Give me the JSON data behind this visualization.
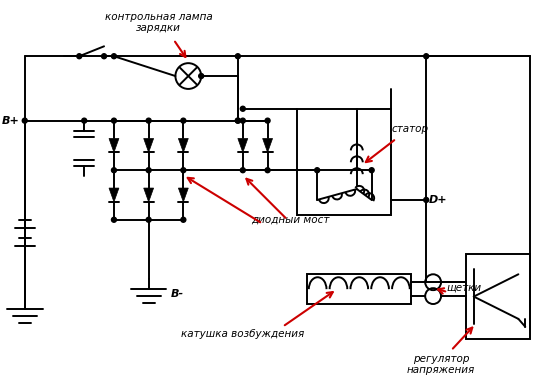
{
  "bg_color": "#ffffff",
  "line_color": "#000000",
  "arrow_color": "#cc0000",
  "text_color": "#000000",
  "fig_width": 5.6,
  "fig_height": 3.87,
  "dpi": 100,
  "labels": {
    "kontrol_lamp": "контрольная лампа\nзарядки",
    "diodny_most": "диодный мост",
    "stator": "статор",
    "shchetki": "щетки",
    "katushka": "катушка возбуждения",
    "regulator": "регулятор\nнапряжения",
    "Bplus": "B+",
    "Bminus": "B-",
    "Dplus": "D+"
  }
}
